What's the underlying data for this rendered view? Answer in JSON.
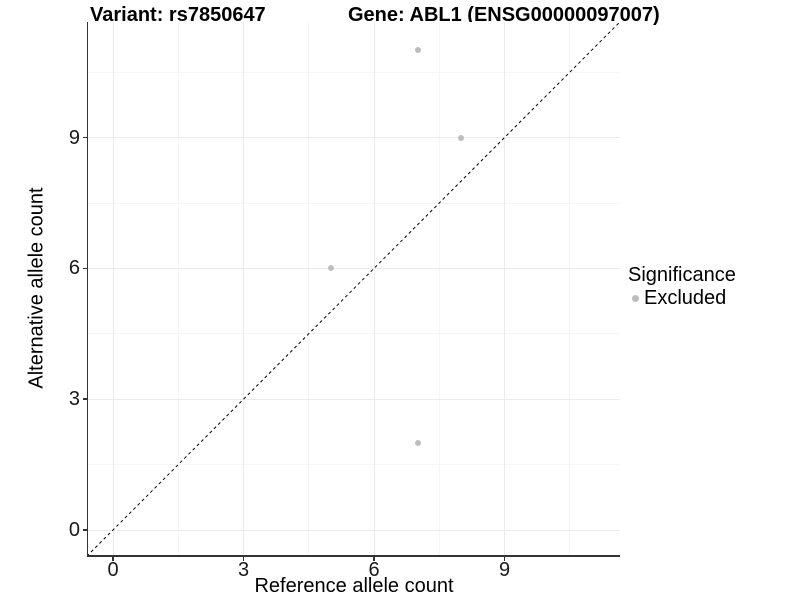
{
  "chart_data": {
    "type": "scatter",
    "title_left": "Variant: rs7850647",
    "title_right": "Gene: ABL1 (ENSG00000097007)",
    "xlabel": "Reference allele count",
    "ylabel": "Alternative allele count",
    "x_ticks": [
      0,
      3,
      6,
      9
    ],
    "y_ticks": [
      0,
      3,
      6,
      9
    ],
    "x_tick_labels": [
      "0",
      "3",
      "6",
      "9"
    ],
    "y_tick_labels": [
      "0",
      "3",
      "6",
      "9"
    ],
    "minor_ticks": [
      1.5,
      4.5,
      7.5,
      10.5
    ],
    "xlim": [
      -0.6,
      11.7
    ],
    "ylim": [
      -0.6,
      11.7
    ],
    "grid": "major and minor, light gray, on white background",
    "reference_line": {
      "kind": "identity y=x",
      "style": "dashed",
      "color": "#000000"
    },
    "series": [
      {
        "name": "Excluded",
        "color": "#bdbdbd",
        "points": [
          {
            "x": 7,
            "y": 11
          },
          {
            "x": 8,
            "y": 9
          },
          {
            "x": 5,
            "y": 6
          },
          {
            "x": 7,
            "y": 2
          }
        ]
      }
    ],
    "legend": {
      "position": "right",
      "title": "Significance",
      "items": [
        {
          "label": "Excluded",
          "color": "#bdbdbd"
        }
      ]
    },
    "colors": {
      "grid_major": "#ebebeb",
      "grid_minor": "#f5f5f5",
      "axis_line": "#333333",
      "text": "#000000",
      "background": "#ffffff"
    }
  }
}
